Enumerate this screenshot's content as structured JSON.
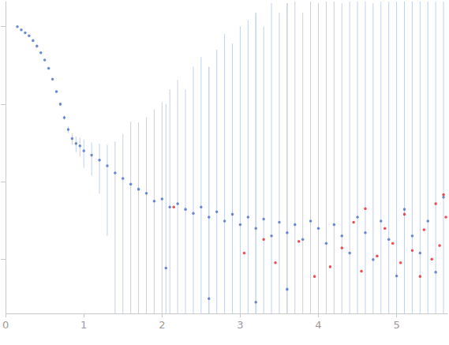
{
  "chart_data": {
    "type": "scatter",
    "log": "y",
    "tick_labels": "x",
    "xlim": [
      0,
      5.65
    ],
    "xticks": [
      0,
      1,
      2,
      3,
      4,
      5
    ],
    "ylim": [
      0.0002,
      2.1
    ],
    "yticks": [
      0.001,
      0.01,
      0.1,
      1
    ],
    "series": [
      {
        "color": "#4a6fc4",
        "marker": "circle",
        "x": [
          0.15,
          0.2,
          0.25,
          0.3,
          0.35,
          0.4,
          0.45,
          0.5,
          0.55,
          0.6,
          0.65,
          0.7,
          0.75,
          0.8,
          0.85,
          0.9,
          0.95,
          1.0,
          1.1,
          1.2,
          1.3,
          1.4,
          1.5,
          1.6,
          1.7,
          1.8,
          1.9,
          2.0,
          2.05,
          2.1,
          2.2,
          2.3,
          2.4,
          2.5,
          2.6,
          2.6,
          2.7,
          2.8,
          2.9,
          3.0,
          3.1,
          3.2,
          3.2,
          3.3,
          3.4,
          3.5,
          3.6,
          3.6,
          3.7,
          3.8,
          3.9,
          4.0,
          4.1,
          4.2,
          4.3,
          4.4,
          4.5,
          4.6,
          4.7,
          4.8,
          4.9,
          5.0,
          5.1,
          5.2,
          5.3,
          5.4,
          5.5,
          5.6
        ],
        "values": [
          1.0,
          0.91,
          0.83,
          0.76,
          0.66,
          0.56,
          0.46,
          0.37,
          0.29,
          0.21,
          0.145,
          0.1,
          0.067,
          0.047,
          0.036,
          0.031,
          0.029,
          0.025,
          0.022,
          0.019,
          0.016,
          0.013,
          0.011,
          0.0093,
          0.008,
          0.0071,
          0.0056,
          0.006,
          0.00077,
          0.0047,
          0.0052,
          0.0044,
          0.0039,
          0.0047,
          0.0035,
          0.00031,
          0.0041,
          0.0031,
          0.0038,
          0.0028,
          0.0035,
          0.0025,
          0.00028,
          0.0033,
          0.002,
          0.003,
          0.0022,
          0.00041,
          0.0028,
          0.0018,
          0.0031,
          0.0025,
          0.0016,
          0.0028,
          0.002,
          0.0012,
          0.0035,
          0.0022,
          0.00099,
          0.0031,
          0.0018,
          0.00061,
          0.0044,
          0.002,
          0.0012,
          0.0031,
          0.00068,
          0.0063
        ],
        "errors": [
          0.002,
          0.002,
          0.002,
          0.003,
          0.003,
          0.003,
          0.003,
          0.003,
          0.004,
          0.004,
          0.004,
          0.004,
          0.004,
          0.005,
          0.006,
          0.007,
          0.008,
          0.01,
          0.01,
          0.012,
          0.014,
          0.02,
          0.03,
          0.05,
          0.05,
          0.06,
          0.08,
          0.1,
          0.1,
          0.15,
          0.2,
          0.15,
          0.3,
          0.4,
          0.3,
          0.3,
          0.5,
          0.8,
          0.6,
          1.0,
          1.2,
          1.5,
          1.5,
          1.0,
          2.0,
          1.5,
          2.0,
          2.0,
          2.5,
          1.5,
          3.0,
          2.0,
          2.5,
          3.0,
          2.0,
          3.0,
          2.5,
          3.0,
          2.0,
          3.0,
          2.5,
          3.0,
          3.0,
          2.5,
          3.0,
          3.0,
          2.5,
          3.0
        ]
      },
      {
        "color": "#e8262b",
        "marker": "circle",
        "x": [
          2.15,
          3.05,
          3.3,
          3.45,
          3.75,
          3.95,
          4.15,
          4.3,
          4.45,
          4.55,
          4.6,
          4.75,
          4.85,
          4.95,
          5.05,
          5.1,
          5.2,
          5.3,
          5.35,
          5.45,
          5.5,
          5.55,
          5.6,
          5.63
        ],
        "values": [
          0.0047,
          0.0012,
          0.0018,
          0.0009,
          0.0017,
          0.0006,
          0.0008,
          0.0014,
          0.003,
          0.0007,
          0.0045,
          0.0011,
          0.0025,
          0.0016,
          0.0009,
          0.0038,
          0.0013,
          0.0006,
          0.0024,
          0.001,
          0.0052,
          0.0015,
          0.0068,
          0.0035
        ]
      }
    ]
  }
}
